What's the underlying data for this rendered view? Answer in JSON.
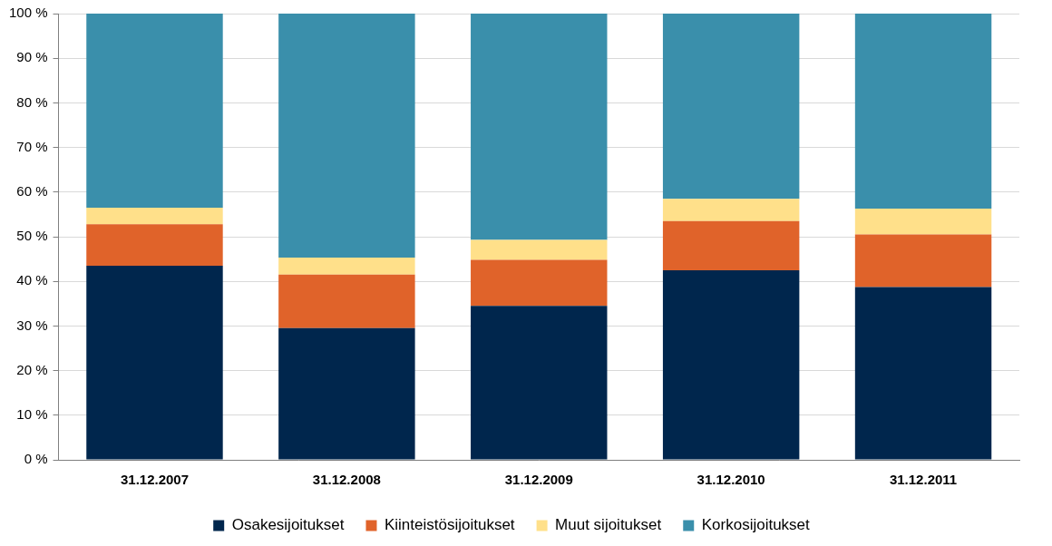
{
  "chart_data": {
    "type": "bar",
    "stacked": true,
    "grid": true,
    "legend": "bottom",
    "categories": [
      "31.12.2007",
      "31.12.2008",
      "31.12.2009",
      "31.12.2010",
      "31.12.2011"
    ],
    "series": [
      {
        "name": "Osakesijoitukset",
        "color": "#00264d",
        "values": [
          43.5,
          29.5,
          34.5,
          42.5,
          38.7
        ]
      },
      {
        "name": "Kiinteistösijoitukset",
        "color": "#e0632a",
        "values": [
          9.3,
          12.0,
          10.3,
          11.0,
          11.8
        ]
      },
      {
        "name": "Muut sijoitukset",
        "color": "#ffe08a",
        "values": [
          3.7,
          3.8,
          4.5,
          5.0,
          5.8
        ]
      },
      {
        "name": "Korkosijoitukset",
        "color": "#3a8fab",
        "values": [
          43.5,
          54.7,
          50.7,
          41.5,
          43.7
        ]
      }
    ],
    "ylim": [
      0,
      100
    ],
    "yticks": [
      {
        "value": 0,
        "label": "0 %"
      },
      {
        "value": 10,
        "label": "10 %"
      },
      {
        "value": 20,
        "label": "20 %"
      },
      {
        "value": 30,
        "label": "30 %"
      },
      {
        "value": 40,
        "label": "40 %"
      },
      {
        "value": 50,
        "label": "50 %"
      },
      {
        "value": 60,
        "label": "60 %"
      },
      {
        "value": 70,
        "label": "70 %"
      },
      {
        "value": 80,
        "label": "80 %"
      },
      {
        "value": 90,
        "label": "90 %"
      },
      {
        "value": 100,
        "label": "100 %"
      }
    ]
  }
}
